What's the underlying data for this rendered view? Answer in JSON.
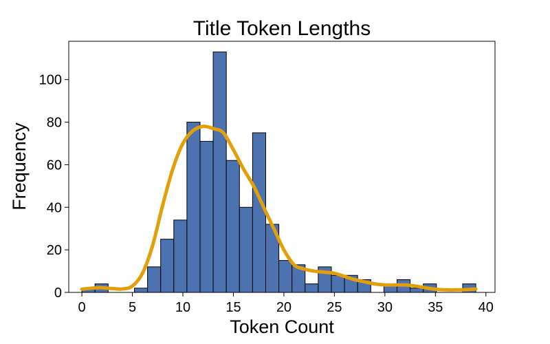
{
  "chart_data": {
    "type": "bar",
    "subtype": "histogram",
    "title": "Title Token Lengths",
    "xlabel": "Token Count",
    "ylabel": "Frequency",
    "xlim": [
      -1.3,
      40.9
    ],
    "ylim": [
      0,
      118
    ],
    "xticks": [
      0,
      5,
      10,
      15,
      20,
      25,
      30,
      35,
      40
    ],
    "yticks": [
      0,
      20,
      40,
      60,
      80,
      100
    ],
    "grid": false,
    "legend": false,
    "bar_color": "#4c72b0",
    "bar_edge_color": "#000000",
    "bin_width": 1.3,
    "bins": [
      {
        "x0": 0.0,
        "x1": 1.3,
        "count": 2
      },
      {
        "x0": 1.3,
        "x1": 2.6,
        "count": 4
      },
      {
        "x0": 2.6,
        "x1": 3.9,
        "count": 0
      },
      {
        "x0": 3.9,
        "x1": 5.2,
        "count": 0
      },
      {
        "x0": 5.2,
        "x1": 6.5,
        "count": 2
      },
      {
        "x0": 6.5,
        "x1": 7.8,
        "count": 12
      },
      {
        "x0": 7.8,
        "x1": 9.1,
        "count": 25
      },
      {
        "x0": 9.1,
        "x1": 10.4,
        "count": 34
      },
      {
        "x0": 10.4,
        "x1": 11.7,
        "count": 80
      },
      {
        "x0": 11.7,
        "x1": 13.0,
        "count": 71
      },
      {
        "x0": 13.0,
        "x1": 14.3,
        "count": 113
      },
      {
        "x0": 14.3,
        "x1": 15.6,
        "count": 62
      },
      {
        "x0": 15.6,
        "x1": 16.9,
        "count": 40
      },
      {
        "x0": 16.9,
        "x1": 18.2,
        "count": 75
      },
      {
        "x0": 18.2,
        "x1": 19.5,
        "count": 32
      },
      {
        "x0": 19.5,
        "x1": 20.8,
        "count": 15
      },
      {
        "x0": 20.8,
        "x1": 22.1,
        "count": 13
      },
      {
        "x0": 22.1,
        "x1": 23.4,
        "count": 4
      },
      {
        "x0": 23.4,
        "x1": 24.7,
        "count": 12
      },
      {
        "x0": 24.7,
        "x1": 26.0,
        "count": 8
      },
      {
        "x0": 26.0,
        "x1": 27.3,
        "count": 8
      },
      {
        "x0": 27.3,
        "x1": 28.6,
        "count": 6
      },
      {
        "x0": 28.6,
        "x1": 29.9,
        "count": 0
      },
      {
        "x0": 29.9,
        "x1": 31.2,
        "count": 4
      },
      {
        "x0": 31.2,
        "x1": 32.5,
        "count": 6
      },
      {
        "x0": 32.5,
        "x1": 33.8,
        "count": 2
      },
      {
        "x0": 33.8,
        "x1": 35.1,
        "count": 4
      },
      {
        "x0": 35.1,
        "x1": 36.4,
        "count": 0
      },
      {
        "x0": 36.4,
        "x1": 37.7,
        "count": 0
      },
      {
        "x0": 37.7,
        "x1": 39.0,
        "count": 4
      }
    ],
    "kde": {
      "color": "#e29f0a",
      "x": [
        0,
        1,
        2,
        3,
        4,
        5,
        6,
        7,
        8,
        9,
        10,
        11,
        12,
        13,
        14,
        15,
        16,
        17,
        18,
        19,
        20,
        21,
        22,
        23,
        24,
        25,
        26,
        27,
        28,
        29,
        30,
        31,
        32,
        33,
        34,
        35,
        36,
        37,
        38,
        39
      ],
      "y": [
        1.5,
        2.0,
        2.2,
        1.8,
        1.6,
        3.0,
        9,
        22,
        41,
        58,
        70,
        76,
        78,
        77,
        75,
        67,
        58,
        50,
        40,
        30,
        20,
        13,
        11,
        10,
        9.5,
        9,
        7.5,
        6,
        5,
        4,
        3.5,
        3.5,
        3.5,
        3.0,
        2.2,
        1.5,
        1.2,
        1.2,
        1.3,
        1.6
      ]
    }
  }
}
